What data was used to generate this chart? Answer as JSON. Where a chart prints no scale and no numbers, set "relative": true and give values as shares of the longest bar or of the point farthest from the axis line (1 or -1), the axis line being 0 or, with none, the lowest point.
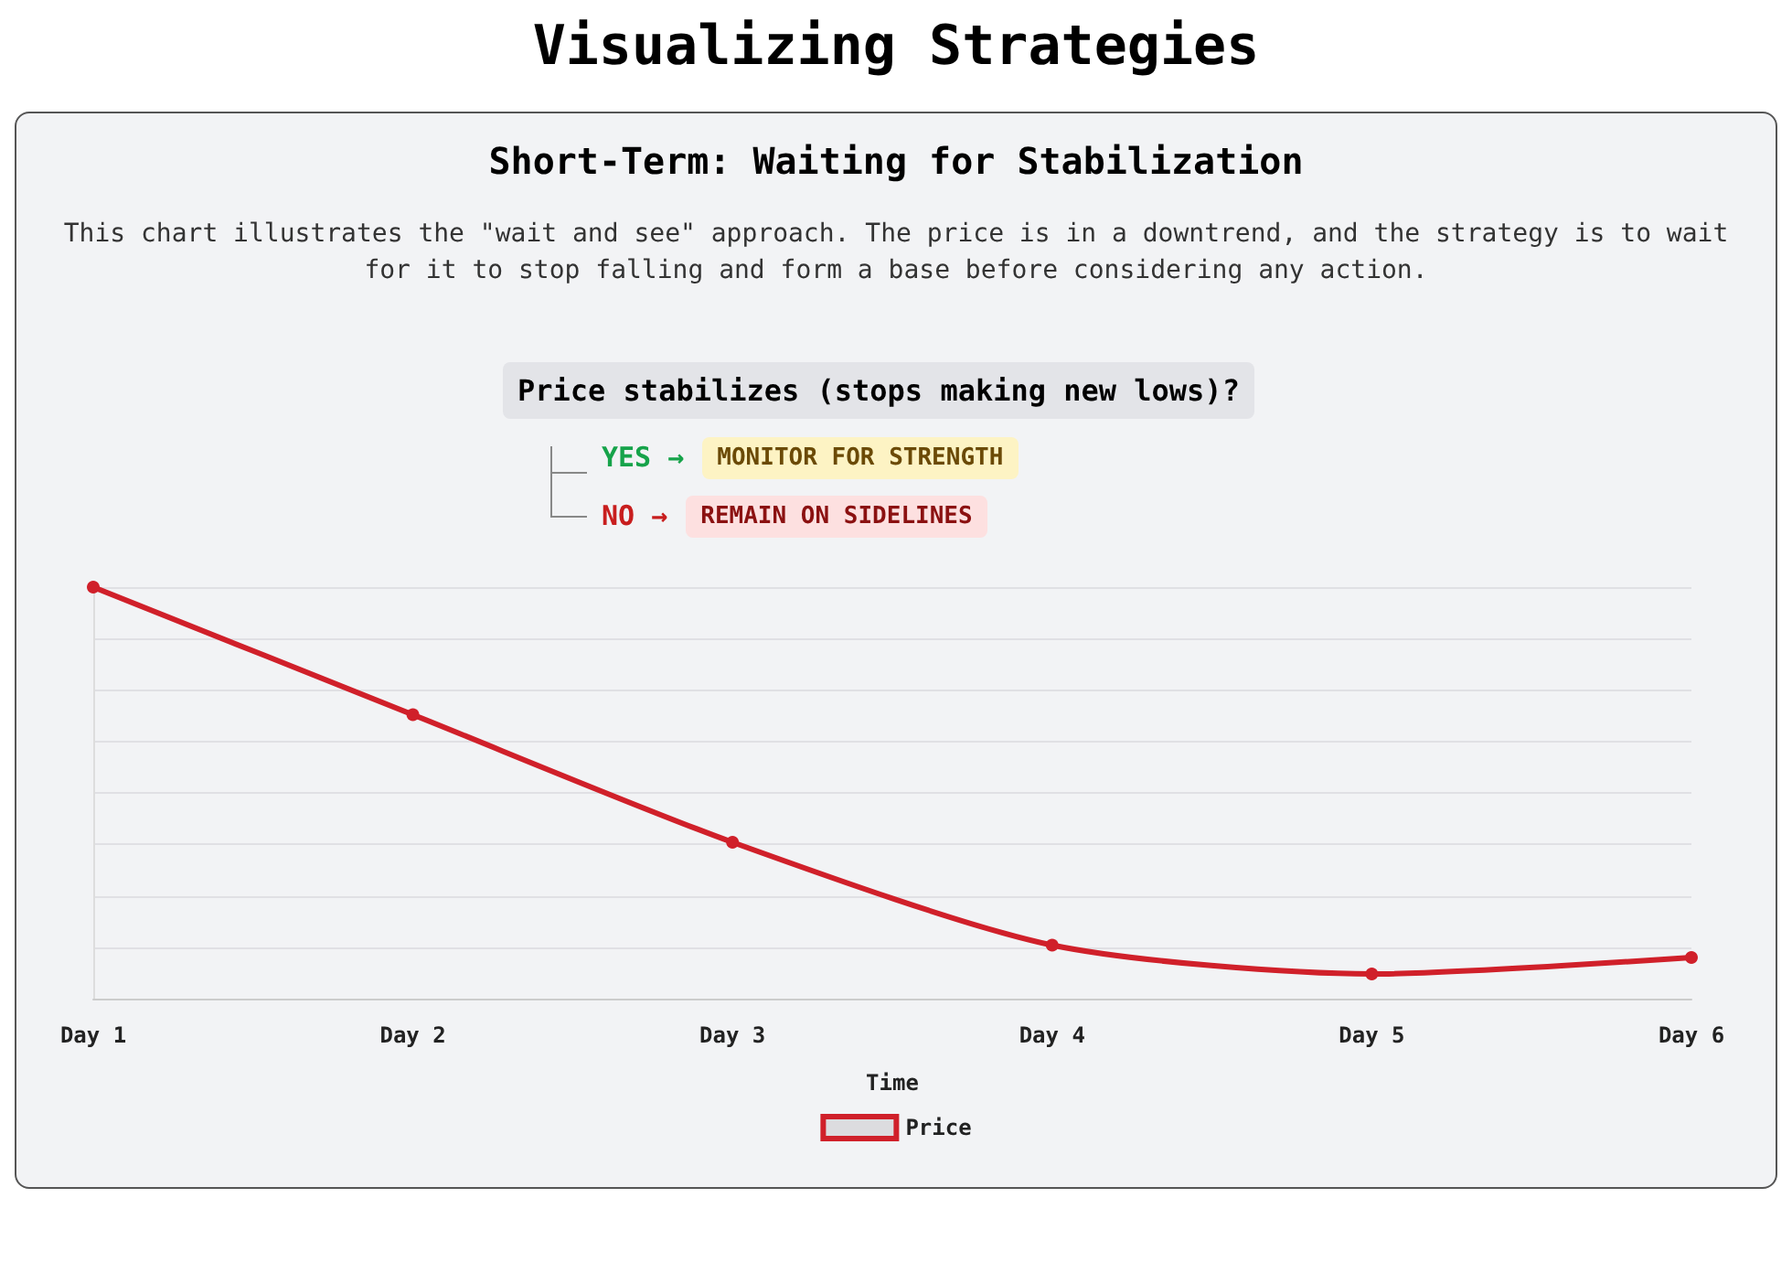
{
  "chart_data": {
    "type": "line",
    "title": "Visualizing Strategies",
    "subtitle": "Short-Term: Waiting for Stabilization",
    "annotations": [
      "This chart illustrates the \"wait and see\" approach. The price is in a downtrend, and the strategy is to wait for it to stop falling and form a base before considering any action.",
      "Price stabilizes (stops making new lows)?",
      "YES →",
      "MONITOR FOR STRENGTH",
      "NO →",
      "REMAIN ON SIDELINES"
    ],
    "categories": [
      "Day 1",
      "Day 2",
      "Day 3",
      "Day 4",
      "Day 5",
      "Day 6"
    ],
    "xlabel": "Time",
    "series": [
      {
        "name": "Price",
        "color": "#d0202a",
        "values": [
          1,
          0.69,
          0.38,
          0.13,
          0.06,
          0.1
        ]
      }
    ],
    "relative": true,
    "grid": "y",
    "legend": "bottom",
    "marker": "circle",
    "line_style": "solid"
  }
}
